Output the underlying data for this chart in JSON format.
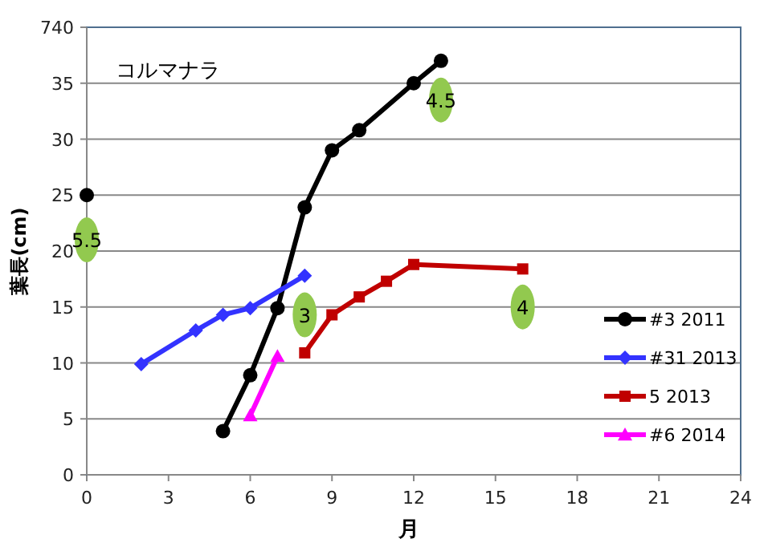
{
  "chart_data": {
    "type": "line",
    "title": "コルマナラ",
    "xlabel": "月",
    "ylabel": "葉長(cm)",
    "xlim": [
      0,
      24
    ],
    "xticks": [
      0,
      3,
      6,
      9,
      12,
      15,
      18,
      21,
      24
    ],
    "ylim": [
      0,
      40
    ],
    "yticks": [
      0,
      5,
      10,
      15,
      20,
      25,
      30,
      35,
      40
    ],
    "grid": "y",
    "legend": "right",
    "series": [
      {
        "name": "#3 2011",
        "color": "#000000",
        "marker": "circle",
        "x": [
          0,
          1,
          5,
          6,
          7,
          8,
          9,
          10,
          12,
          13
        ],
        "values": [
          25,
          null,
          3.9,
          8.9,
          14.9,
          23.9,
          29,
          30.8,
          35,
          37
        ]
      },
      {
        "name": "#31 2013",
        "color": "#3333ff",
        "marker": "diamond",
        "x": [
          2,
          4,
          5,
          6,
          8
        ],
        "values": [
          9.9,
          12.9,
          14.3,
          14.9,
          17.8
        ]
      },
      {
        "name": "5 2013",
        "color": "#c00000",
        "marker": "square",
        "x": [
          8,
          9,
          10,
          11,
          12,
          16
        ],
        "values": [
          10.9,
          14.3,
          15.9,
          17.3,
          18.8,
          18.4
        ]
      },
      {
        "name": "#6 2014",
        "color": "#ff00ff",
        "marker": "triangle",
        "x": [
          6,
          7
        ],
        "values": [
          5.3,
          10.6
        ]
      }
    ],
    "annotations": [
      "7",
      {
        "text": "5.5",
        "x": 0,
        "y": 21
      },
      {
        "text": "3",
        "x": 8,
        "y": 14.3
      },
      {
        "text": "4.5",
        "x": 13,
        "y": 33.5
      },
      {
        "text": "4",
        "x": 16,
        "y": 15
      }
    ]
  }
}
